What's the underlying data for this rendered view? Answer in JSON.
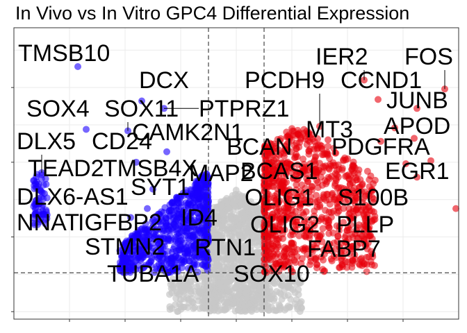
{
  "chart_data": {
    "type": "scatter",
    "title": "In Vivo vs In Vitro GPC4 Differential Expression",
    "xlabel": "",
    "ylabel": "",
    "grid": true,
    "legend": "none",
    "colors": {
      "down": "#1a00ff",
      "up": "#e8000b",
      "ns": "#c8c8c8",
      "panel_border": "#333333",
      "grid": "#ebebeb"
    },
    "xlim": [
      -8,
      8
    ],
    "ylim": [
      -0.5,
      19
    ],
    "thresholds": {
      "x": [
        -1,
        1
      ],
      "y": 2.6
    },
    "labeled_genes": [
      {
        "gene": "TMSB10",
        "x": -5.7,
        "y": 16.4,
        "group": "down"
      },
      {
        "gene": "DCX",
        "x": -3.4,
        "y": 14.1,
        "group": "down"
      },
      {
        "gene": "SOX4",
        "x": -5.4,
        "y": 12.2,
        "group": "down"
      },
      {
        "gene": "SOX11",
        "x": -3.9,
        "y": 12.1,
        "group": "down"
      },
      {
        "gene": "PTPRZ1",
        "x": -2.6,
        "y": 13.6,
        "group": "down"
      },
      {
        "gene": "CAMK2N1",
        "x": -2.5,
        "y": 10.7,
        "group": "down"
      },
      {
        "gene": "DLX5",
        "x": -7.0,
        "y": 9.3,
        "group": "down"
      },
      {
        "gene": "CD24",
        "x": -3.6,
        "y": 10.0,
        "group": "down"
      },
      {
        "gene": "TEAD2",
        "x": -7.2,
        "y": 8.3,
        "group": "down"
      },
      {
        "gene": "TMSB4X",
        "x": -3.0,
        "y": 8.2,
        "group": "down"
      },
      {
        "gene": "MAP2",
        "x": -1.4,
        "y": 7.9,
        "group": "down"
      },
      {
        "gene": "SYT1",
        "x": -3.2,
        "y": 6.9,
        "group": "down"
      },
      {
        "gene": "DLX6-AS1",
        "x": -7.1,
        "y": 7.2,
        "group": "down"
      },
      {
        "gene": "NNAT",
        "x": -6.9,
        "y": 6.5,
        "group": "down"
      },
      {
        "gene": "IGFBP2",
        "x": -3.8,
        "y": 6.3,
        "group": "down"
      },
      {
        "gene": "ID4",
        "x": -2.0,
        "y": 5.8,
        "group": "down"
      },
      {
        "gene": "STMN2",
        "x": -2.8,
        "y": 4.5,
        "group": "down"
      },
      {
        "gene": "RTN1",
        "x": -1.5,
        "y": 4.2,
        "group": "down"
      },
      {
        "gene": "TUBA1A",
        "x": -2.2,
        "y": 3.3,
        "group": "down"
      },
      {
        "gene": "IER2",
        "x": 4.6,
        "y": 15.5,
        "group": "up"
      },
      {
        "gene": "FOS",
        "x": 7.5,
        "y": 14.9,
        "group": "up"
      },
      {
        "gene": "CCND1",
        "x": 5.1,
        "y": 14.2,
        "group": "up"
      },
      {
        "gene": "PCDH9",
        "x": 3.0,
        "y": 12.4,
        "group": "up"
      },
      {
        "gene": "JUNB",
        "x": 6.5,
        "y": 13.6,
        "group": "up"
      },
      {
        "gene": "MT3",
        "x": 3.3,
        "y": 11.5,
        "group": "up"
      },
      {
        "gene": "APOD",
        "x": 5.7,
        "y": 12.3,
        "group": "up"
      },
      {
        "gene": "BCAN",
        "x": 2.1,
        "y": 10.3,
        "group": "up"
      },
      {
        "gene": "PDGFRA",
        "x": 4.2,
        "y": 9.8,
        "group": "up"
      },
      {
        "gene": "BCAS1",
        "x": 2.3,
        "y": 9.3,
        "group": "up"
      },
      {
        "gene": "EGR1",
        "x": 6.5,
        "y": 9.0,
        "group": "up"
      },
      {
        "gene": "OLIG1",
        "x": 1.7,
        "y": 8.4,
        "group": "up"
      },
      {
        "gene": "S100B",
        "x": 4.9,
        "y": 8.1,
        "group": "up"
      },
      {
        "gene": "OLIG2",
        "x": 1.8,
        "y": 6.3,
        "group": "up"
      },
      {
        "gene": "PLLP",
        "x": 4.5,
        "y": 6.8,
        "group": "up"
      },
      {
        "gene": "FABP7",
        "x": 2.5,
        "y": 5.0,
        "group": "up"
      },
      {
        "gene": "SOX10",
        "x": 1.8,
        "y": 3.4,
        "group": "up"
      }
    ],
    "extra_points": [
      {
        "x": 7.9,
        "y": 6.9,
        "group": "up"
      },
      {
        "x": 6.1,
        "y": 9.9,
        "group": "up"
      },
      {
        "x": 7.0,
        "y": 10.1,
        "group": "up"
      },
      {
        "x": 5.2,
        "y": 11.4,
        "group": "up"
      },
      {
        "x": 6.4,
        "y": 11.6,
        "group": "up"
      },
      {
        "x": -6.9,
        "y": 7.9,
        "group": "down"
      }
    ]
  }
}
